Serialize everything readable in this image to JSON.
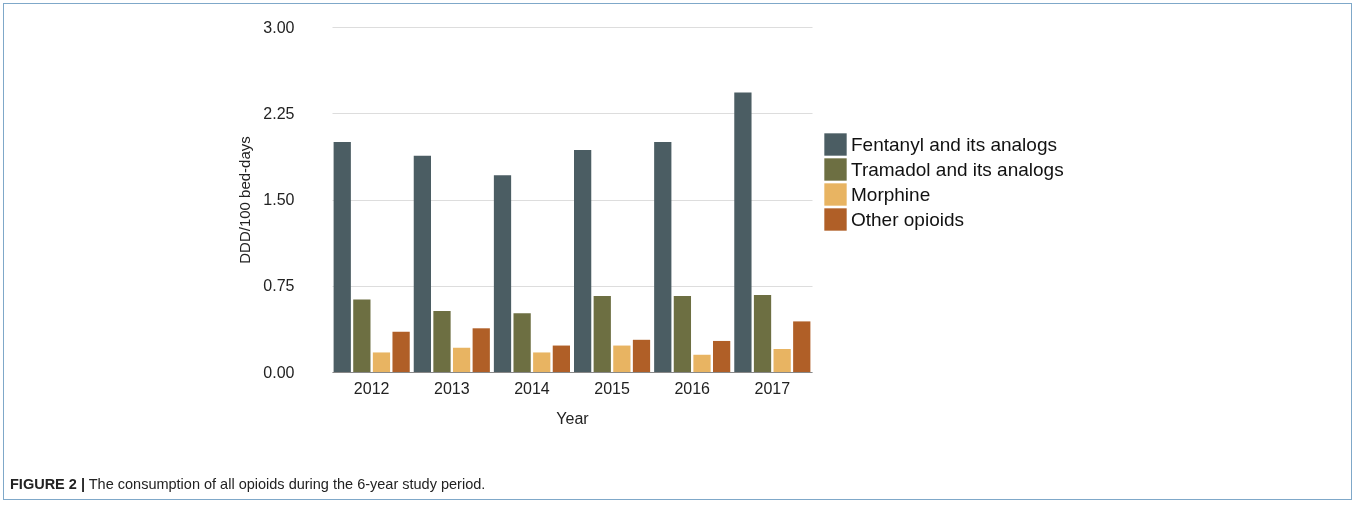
{
  "chart_data": {
    "type": "bar",
    "xlabel": "Year",
    "ylabel": "DDD/100 bed-days",
    "categories": [
      "2012",
      "2013",
      "2014",
      "2015",
      "2016",
      "2017"
    ],
    "series": [
      {
        "name": "Fentanyl and its analogs",
        "color": "#4b5d63",
        "values": [
          2.0,
          1.88,
          1.71,
          1.93,
          2.0,
          2.43
        ]
      },
      {
        "name": "Tramadol and its analogs",
        "color": "#6d6f42",
        "values": [
          0.63,
          0.53,
          0.51,
          0.66,
          0.66,
          0.67
        ]
      },
      {
        "name": "Morphine",
        "color": "#e8b462",
        "values": [
          0.17,
          0.21,
          0.17,
          0.23,
          0.15,
          0.2
        ]
      },
      {
        "name": "Other opioids",
        "color": "#b05f27",
        "values": [
          0.35,
          0.38,
          0.23,
          0.28,
          0.27,
          0.44
        ]
      }
    ],
    "ylim": [
      0,
      3
    ],
    "yticks": [
      {
        "value": 0,
        "label": "0.00"
      },
      {
        "value": 0.75,
        "label": "0.75"
      },
      {
        "value": 1.5,
        "label": "1.50"
      },
      {
        "value": 2.25,
        "label": "2.25"
      },
      {
        "value": 3,
        "label": "3.00"
      }
    ],
    "grid": "y",
    "legend": "right",
    "annotations": [
      "FIGURE 2 | The consumption of all opioids during the 6-year study period."
    ]
  }
}
